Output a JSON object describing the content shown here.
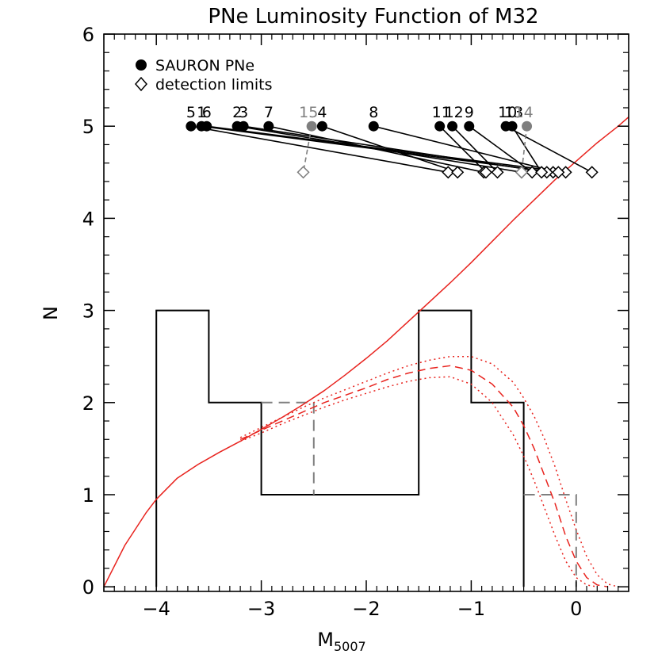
{
  "chart_data": {
    "type": "line",
    "title": "PNe Luminosity Function of M32",
    "xlabel": "M",
    "xlabel_sub": "5007",
    "ylabel": "N",
    "xlim": [
      -4.5,
      0.5
    ],
    "ylim": [
      -0.05,
      6
    ],
    "x_ticks": [
      -4,
      -3,
      -2,
      -1,
      0
    ],
    "x_tick_labels": [
      "−4",
      "−3",
      "−2",
      "−1",
      "0"
    ],
    "y_ticks": [
      0,
      1,
      2,
      3,
      4,
      5,
      6
    ],
    "y_tick_labels": [
      "0",
      "1",
      "2",
      "3",
      "4",
      "5",
      "6"
    ],
    "legend": {
      "placement": "top-left",
      "entries": [
        {
          "label": "SAURON PNe",
          "marker": "filled-circle"
        },
        {
          "label": "detection limits",
          "marker": "open-diamond"
        }
      ]
    },
    "histogram": {
      "edges": [
        -4.0,
        -3.5,
        -3.0,
        -2.5,
        -2.0,
        -1.5,
        -1.0,
        -0.5
      ],
      "counts": [
        3,
        2,
        1,
        1,
        1,
        3,
        2
      ]
    },
    "histogram_dashed": [
      {
        "x": [
          -3.0,
          -2.5,
          -2.5
        ],
        "y": [
          2,
          2,
          1
        ]
      },
      {
        "x": [
          -0.5,
          0.0,
          0.0
        ],
        "y": [
          1,
          1,
          0
        ]
      }
    ],
    "pne": [
      {
        "label": "5",
        "m": -3.67,
        "limit": -1.22,
        "gray": false
      },
      {
        "label": "1",
        "m": -3.57,
        "limit": -0.22,
        "gray": false
      },
      {
        "label": "6",
        "m": -3.52,
        "limit": -0.1,
        "gray": false
      },
      {
        "label": "2",
        "m": -3.23,
        "limit": -0.52,
        "gray": false
      },
      {
        "label": "3",
        "m": -3.17,
        "limit": -0.28,
        "gray": false
      },
      {
        "label": "7",
        "m": -2.93,
        "limit": -0.88,
        "gray": false
      },
      {
        "label": "15",
        "m": -2.52,
        "limit": -2.6,
        "gray": true
      },
      {
        "label": "4",
        "m": -2.42,
        "limit": -1.13,
        "gray": false
      },
      {
        "label": "8",
        "m": -1.93,
        "limit": -0.17,
        "gray": false
      },
      {
        "label": "11",
        "m": -1.3,
        "limit": -0.86,
        "gray": false
      },
      {
        "label": "12",
        "m": -1.18,
        "limit": -0.75,
        "gray": false
      },
      {
        "label": "9",
        "m": -1.02,
        "limit": -0.42,
        "gray": false
      },
      {
        "label": "10",
        "m": -0.67,
        "limit": 0.15,
        "gray": false
      },
      {
        "label": "13",
        "m": -0.61,
        "limit": -0.33,
        "gray": false
      },
      {
        "label": "14",
        "m": -0.47,
        "limit": -0.52,
        "gray": true
      }
    ],
    "pne_label_text": "5 1 6   2 3  7   15  4          8           1 1 1 2  9      10  13  14",
    "models": {
      "solid": {
        "x": [
          -4.5,
          -4.3,
          -4.1,
          -4.0,
          -3.8,
          -3.6,
          -3.4,
          -3.2,
          -3.0,
          -2.8,
          -2.6,
          -2.4,
          -2.2,
          -2.0,
          -1.8,
          -1.6,
          -1.4,
          -1.2,
          -1.0,
          -0.8,
          -0.6,
          -0.4,
          -0.2,
          0.0,
          0.2,
          0.4,
          0.5
        ],
        "y": [
          0.0,
          0.45,
          0.8,
          0.95,
          1.18,
          1.33,
          1.46,
          1.58,
          1.71,
          1.84,
          1.98,
          2.13,
          2.3,
          2.48,
          2.67,
          2.88,
          3.09,
          3.3,
          3.52,
          3.75,
          3.98,
          4.2,
          4.42,
          4.62,
          4.82,
          5.0,
          5.1
        ]
      },
      "dashed": {
        "x": [
          -3.2,
          -3.0,
          -2.8,
          -2.6,
          -2.4,
          -2.2,
          -2.0,
          -1.8,
          -1.6,
          -1.4,
          -1.2,
          -1.0,
          -0.8,
          -0.6,
          -0.5,
          -0.4,
          -0.3,
          -0.2,
          -0.1,
          0.0,
          0.1,
          0.2,
          0.3
        ],
        "y": [
          1.6,
          1.7,
          1.8,
          1.9,
          2.0,
          2.08,
          2.16,
          2.25,
          2.32,
          2.37,
          2.4,
          2.35,
          2.2,
          1.95,
          1.75,
          1.5,
          1.2,
          0.9,
          0.55,
          0.28,
          0.1,
          0.02,
          0.0
        ]
      },
      "dotted_upper": {
        "x": [
          -3.2,
          -3.0,
          -2.8,
          -2.6,
          -2.4,
          -2.2,
          -2.0,
          -1.8,
          -1.6,
          -1.4,
          -1.2,
          -1.0,
          -0.8,
          -0.6,
          -0.5,
          -0.4,
          -0.3,
          -0.2,
          -0.1,
          0.0,
          0.1,
          0.2,
          0.3,
          0.4
        ],
        "y": [
          1.62,
          1.73,
          1.84,
          1.95,
          2.05,
          2.14,
          2.23,
          2.32,
          2.4,
          2.46,
          2.5,
          2.5,
          2.42,
          2.22,
          2.05,
          1.85,
          1.6,
          1.3,
          0.95,
          0.62,
          0.33,
          0.13,
          0.03,
          0.0
        ]
      },
      "dotted_lower": {
        "x": [
          -3.2,
          -3.0,
          -2.8,
          -2.6,
          -2.4,
          -2.2,
          -2.0,
          -1.8,
          -1.6,
          -1.4,
          -1.2,
          -1.0,
          -0.8,
          -0.6,
          -0.5,
          -0.4,
          -0.3,
          -0.2,
          -0.1,
          0.0,
          0.1,
          0.2
        ],
        "y": [
          1.58,
          1.67,
          1.77,
          1.86,
          1.95,
          2.03,
          2.1,
          2.17,
          2.23,
          2.27,
          2.28,
          2.2,
          2.0,
          1.65,
          1.42,
          1.15,
          0.85,
          0.55,
          0.28,
          0.1,
          0.02,
          0.0
        ]
      }
    },
    "colors": {
      "axis": "#000000",
      "model": "#e8231e",
      "limit_gray": "#7f7f7f",
      "histogram": "#000000"
    }
  }
}
